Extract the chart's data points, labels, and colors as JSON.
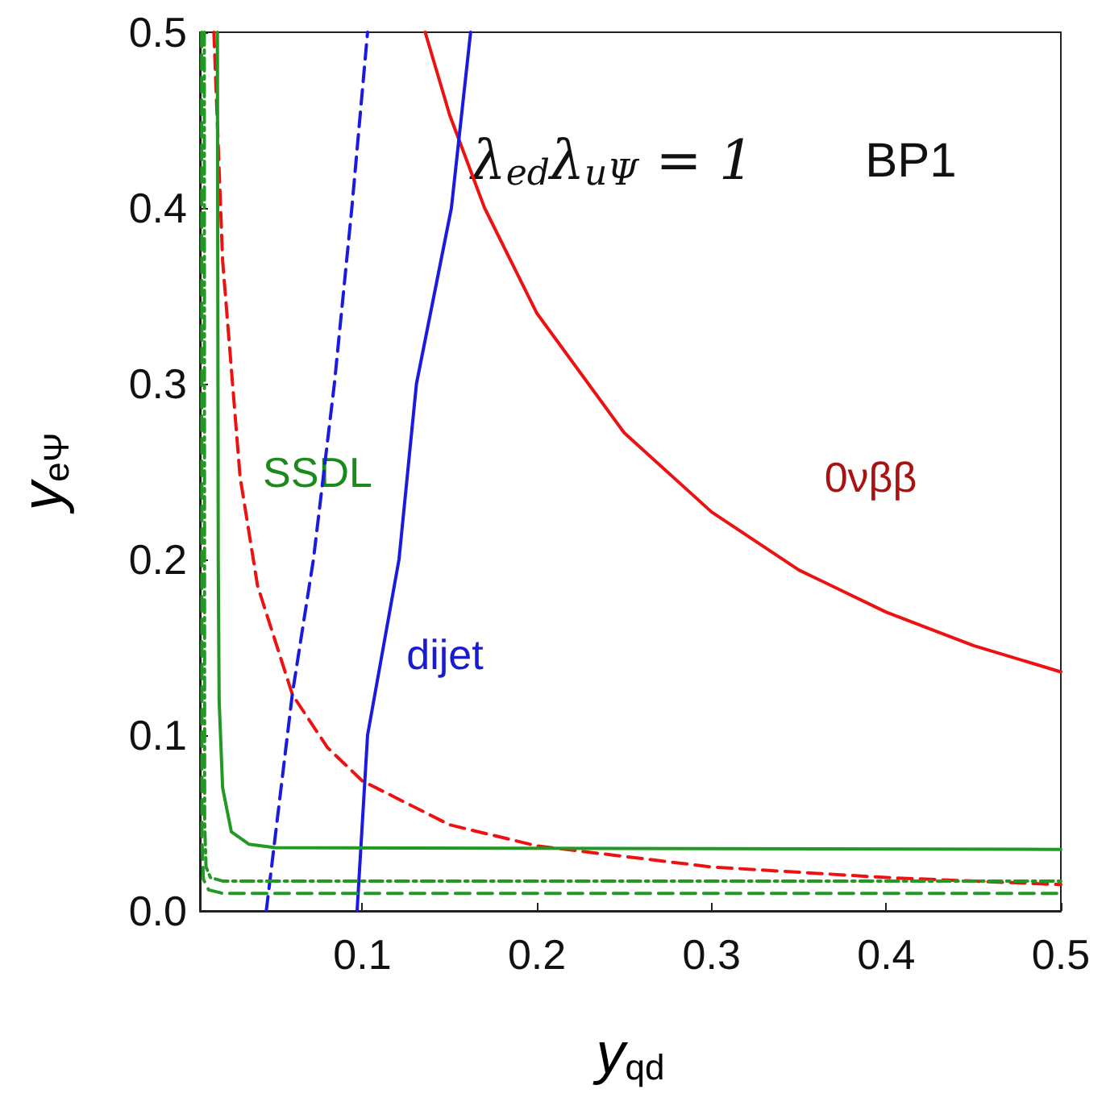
{
  "chart_data": {
    "type": "line",
    "xlabel": "y$_{qd}$",
    "ylabel": "y$_{eΨ}$",
    "xlim": [
      0.007,
      0.5
    ],
    "xticks": [
      0.1,
      0.2,
      0.3,
      0.4,
      0.5
    ],
    "ylim": [
      0,
      0.5
    ],
    "yticks": [
      {
        "value": 0,
        "label": "0.0"
      },
      0.1,
      0.2,
      0.3,
      0.4,
      0.5
    ],
    "grid": false,
    "marker": "none",
    "series": [
      {
        "color": "#ee1111",
        "line_style": "solid",
        "x": [
          0.136,
          0.15,
          0.17,
          0.2,
          0.25,
          0.3,
          0.35,
          0.4,
          0.45,
          0.5
        ],
        "values": [
          0.5,
          0.453,
          0.4,
          0.34,
          0.272,
          0.227,
          0.194,
          0.17,
          0.151,
          0.136
        ]
      },
      {
        "color": "#ee1111",
        "line_style": "dashed",
        "x": [
          0.015,
          0.02,
          0.03,
          0.04,
          0.06,
          0.08,
          0.1,
          0.15,
          0.2,
          0.3,
          0.4,
          0.5
        ],
        "values": [
          0.5,
          0.37,
          0.247,
          0.185,
          0.123,
          0.093,
          0.074,
          0.049,
          0.037,
          0.025,
          0.019,
          0.015
        ]
      },
      {
        "color": "#1a1ae0",
        "line_style": "dashed",
        "x": [
          0.045,
          0.06,
          0.072,
          0.084,
          0.094,
          0.103
        ],
        "values": [
          0,
          0.124,
          0.2,
          0.3,
          0.4,
          0.5
        ]
      },
      {
        "color": "#1a1ae0",
        "line_style": "solid",
        "x": [
          0.097,
          0.103,
          0.121,
          0.131,
          0.151,
          0.162
        ],
        "values": [
          0,
          0.1,
          0.2,
          0.3,
          0.4,
          0.5
        ]
      },
      {
        "color": "#229922",
        "line_style": "solid",
        "x": [
          0.017,
          0.0175,
          0.018,
          0.02,
          0.025,
          0.035,
          0.05,
          0.5
        ],
        "values": [
          0.5,
          0.2,
          0.12,
          0.07,
          0.045,
          0.038,
          0.036,
          0.035
        ]
      },
      {
        "color": "#229922",
        "line_style": "dashdot",
        "x": [
          0.0095,
          0.0097,
          0.0105,
          0.013,
          0.02,
          0.5
        ],
        "values": [
          0.5,
          0.05,
          0.025,
          0.019,
          0.017,
          0.017
        ]
      },
      {
        "color": "#229922",
        "line_style": "dashed",
        "x": [
          0.008,
          0.0082,
          0.009,
          0.012,
          0.02,
          0.5
        ],
        "values": [
          0.5,
          0.04,
          0.018,
          0.012,
          0.01,
          0.01
        ]
      }
    ],
    "annotations": [
      "λ$_{ed}$λ$_{uΨ}$ = 1",
      "BP1",
      "SSDL",
      "dijet",
      "0νββ"
    ]
  }
}
